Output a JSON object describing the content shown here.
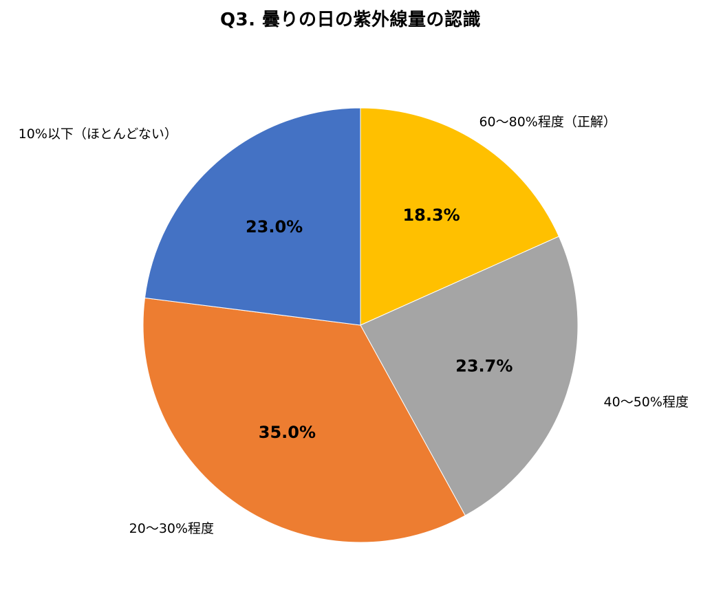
{
  "chart_data": {
    "type": "pie",
    "title": "Q3. 曇りの日の紫外線量の認識",
    "slices": [
      {
        "label": "60〜80%程度（正解）",
        "value": 18.3,
        "display": "18.3%",
        "color": "#FFC000"
      },
      {
        "label": "40〜50%程度",
        "value": 23.7,
        "display": "23.7%",
        "color": "#A5A5A5"
      },
      {
        "label": "20〜30%程度",
        "value": 35.0,
        "display": "35.0%",
        "color": "#ED7D31"
      },
      {
        "label": "10%以下（ほとんどない）",
        "value": 23.0,
        "display": "23.0%",
        "color": "#4472C4"
      }
    ],
    "start_angle": "12 o'clock",
    "direction": "clockwise",
    "legend": "none (category labels placed outside slices)"
  }
}
